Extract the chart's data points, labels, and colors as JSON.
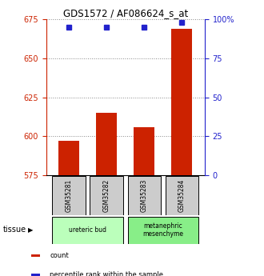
{
  "title": "GDS1572 / AF086624_s_at",
  "samples": [
    "GSM35281",
    "GSM35282",
    "GSM35283",
    "GSM35284"
  ],
  "counts": [
    597,
    615,
    606,
    669
  ],
  "percentiles": [
    95,
    95,
    95,
    98
  ],
  "ylim_left": [
    575,
    675
  ],
  "ylim_right": [
    0,
    100
  ],
  "yticks_left": [
    575,
    600,
    625,
    650,
    675
  ],
  "yticks_right": [
    0,
    25,
    50,
    75,
    100
  ],
  "ytick_labels_right": [
    "0",
    "25",
    "50",
    "75",
    "100%"
  ],
  "bar_color": "#cc2200",
  "dot_color": "#2222cc",
  "tissue_groups": [
    {
      "label": "ureteric bud",
      "samples": [
        0,
        1
      ],
      "color": "#bbffbb"
    },
    {
      "label": "metanephric\nmesenchyme",
      "samples": [
        2,
        3
      ],
      "color": "#88ee88"
    }
  ],
  "tissue_label": "tissue",
  "legend_items": [
    {
      "color": "#cc2200",
      "label": "count"
    },
    {
      "color": "#2222cc",
      "label": "percentile rank within the sample"
    }
  ],
  "grid_color": "#888888",
  "left_axis_color": "#cc2200",
  "right_axis_color": "#2222cc",
  "sample_box_color": "#cccccc",
  "bar_bottom": 575,
  "bar_width": 0.55
}
